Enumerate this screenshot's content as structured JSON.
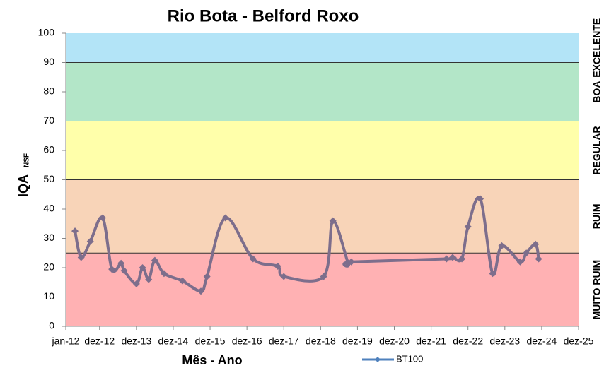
{
  "chart_data": {
    "type": "line",
    "title": "Rio Bota - Belford Roxo",
    "y_label": "IQA",
    "y_label_sub": "NSF",
    "x_label": "Mês - Ano",
    "ylim": [
      0,
      100
    ],
    "yticks": [
      0,
      10,
      20,
      30,
      40,
      50,
      60,
      70,
      80,
      90,
      100
    ],
    "xlim": [
      "2012-01",
      "2025-12"
    ],
    "xticks": [
      {
        "value": "2012-01",
        "label": "jan-12"
      },
      {
        "value": "2012-12",
        "label": "dez-12"
      },
      {
        "value": "2013-12",
        "label": "dez-13"
      },
      {
        "value": "2014-12",
        "label": "dez-14"
      },
      {
        "value": "2015-12",
        "label": "dez-15"
      },
      {
        "value": "2016-12",
        "label": "dez-16"
      },
      {
        "value": "2017-12",
        "label": "dez-17"
      },
      {
        "value": "2018-12",
        "label": "dez-18"
      },
      {
        "value": "2019-12",
        "label": "dez-19"
      },
      {
        "value": "2020-12",
        "label": "dez-20"
      },
      {
        "value": "2021-12",
        "label": "dez-21"
      },
      {
        "value": "2022-12",
        "label": "dez-22"
      },
      {
        "value": "2023-12",
        "label": "dez-23"
      },
      {
        "value": "2024-12",
        "label": "dez-24"
      },
      {
        "value": "2025-12",
        "label": "dez-25"
      }
    ],
    "bands": [
      {
        "label": "MUITO RUIM",
        "from": 0,
        "to": 25,
        "color": "#ffb1b3"
      },
      {
        "label": "RUIM",
        "from": 25,
        "to": 50,
        "color": "#f8d4b8"
      },
      {
        "label": "REGULAR",
        "from": 50,
        "to": 70,
        "color": "#ffffaa"
      },
      {
        "label": "BOA",
        "from": 70,
        "to": 90,
        "color": "#b3e6c8"
      },
      {
        "label": "EXCELENTE",
        "from": 90,
        "to": 100,
        "color": "#b3e4f7"
      }
    ],
    "legend_color": "#4f81bd",
    "x": [
      "2012-04",
      "2012-06",
      "2012-09",
      "2013-01",
      "2013-04",
      "2013-07",
      "2013-08",
      "2013-12",
      "2014-02",
      "2014-04",
      "2014-06",
      "2014-09",
      "2015-03",
      "2015-09",
      "2015-11",
      "2016-05",
      "2017-02",
      "2017-10",
      "2017-12",
      "2019-01",
      "2019-04",
      "2019-09",
      "2019-10",
      "2022-05",
      "2022-07",
      "2022-10",
      "2022-12",
      "2023-04",
      "2023-08",
      "2023-11",
      "2024-05",
      "2024-07",
      "2024-10",
      "2024-11"
    ],
    "series": [
      {
        "name": "BT100",
        "color": "#7d6e8c",
        "values": [
          32.5,
          23.5,
          29,
          37,
          19.5,
          21.5,
          19,
          14.5,
          20,
          16,
          22.5,
          18,
          15.5,
          12,
          17,
          37,
          23,
          20.5,
          17,
          17,
          36,
          21.5,
          22,
          23,
          23.5,
          23,
          34,
          43.5,
          18,
          27.5,
          22,
          25,
          28,
          23
        ]
      }
    ]
  }
}
